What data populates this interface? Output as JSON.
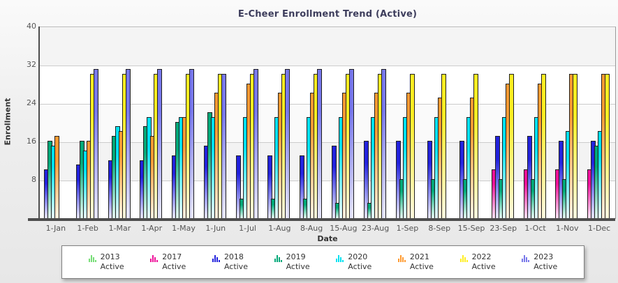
{
  "colors": {
    "page_bg_top": "#fafafa",
    "page_bg_bottom": "#e7e7e7",
    "title": "#3d3d5c",
    "tick_label": "#555555",
    "axis_label": "#333333",
    "gridline": "#cccccc",
    "axis_line": "#4d4d4d",
    "bar_outline": "#1f1f1f",
    "legend_border": "#808080",
    "plot_bands_top_to_bottom": [
      "#f4f4f4",
      "#ffffff",
      "#fafafa",
      "#f3f3f3",
      "#ffffff"
    ]
  },
  "chart_data": {
    "type": "bar",
    "title": "E-Cheer Enrollment Trend (Active)",
    "xlabel": "Date",
    "ylabel": "Enrollment",
    "ylim": [
      0,
      40
    ],
    "yticks": [
      40,
      32,
      24,
      16,
      8
    ],
    "grid": "horizontal gridlines every 8 units, alternating shaded bands",
    "legend_position": "bottom",
    "categories": [
      "1-Jan",
      "1-Feb",
      "1-Mar",
      "1-Apr",
      "1-May",
      "1-Jun",
      "1-Jul",
      "1-Aug",
      "8-Aug",
      "15-Aug",
      "23-Aug",
      "1-Sep",
      "8-Sep",
      "15-Sep",
      "23-Sep",
      "1-Oct",
      "1-Nov",
      "1-Dec"
    ],
    "series": [
      {
        "name": "2013 Active",
        "year": "2013",
        "status": "Active",
        "color": "#76dd76",
        "fade": "#e4f9e4",
        "values": [
          null,
          null,
          null,
          null,
          null,
          null,
          null,
          null,
          null,
          null,
          null,
          null,
          null,
          null,
          null,
          null,
          null,
          null
        ]
      },
      {
        "name": "2017 Active",
        "year": "2017",
        "status": "Active",
        "color": "#ee1199",
        "fade": "#ffd9f0",
        "values": [
          null,
          null,
          null,
          null,
          null,
          null,
          null,
          null,
          null,
          null,
          null,
          null,
          null,
          null,
          10,
          10,
          10,
          10
        ]
      },
      {
        "name": "2018 Active",
        "year": "2018",
        "status": "Active",
        "color": "#2222dd",
        "fade": "#dedef8",
        "values": [
          10,
          11,
          12,
          12,
          13,
          15,
          13,
          13,
          13,
          15,
          16,
          16,
          16,
          16,
          17,
          17,
          16,
          16
        ]
      },
      {
        "name": "2019 Active",
        "year": "2019",
        "status": "Active",
        "color": "#00a878",
        "fade": "#daf3ea",
        "values": [
          16,
          16,
          17,
          19,
          20,
          22,
          4,
          4,
          4,
          3,
          3,
          8,
          8,
          8,
          8,
          8,
          8,
          15
        ]
      },
      {
        "name": "2020 Active",
        "year": "2020",
        "status": "Active",
        "color": "#00e1f0",
        "fade": "#e0fbfd",
        "values": [
          15,
          14,
          19,
          21,
          21,
          21,
          21,
          21,
          21,
          21,
          21,
          21,
          21,
          21,
          21,
          21,
          18,
          18
        ]
      },
      {
        "name": "2021 Active",
        "year": "2021",
        "status": "Active",
        "color": "#ff9b32",
        "fade": "#ffeeda",
        "values": [
          17,
          16,
          18,
          17,
          21,
          26,
          28,
          26,
          26,
          26,
          26,
          26,
          25,
          25,
          28,
          28,
          30,
          30
        ]
      },
      {
        "name": "2022 Active",
        "year": "2022",
        "status": "Active",
        "color": "#ffee22",
        "fade": "#fffbd9",
        "values": [
          null,
          30,
          30,
          30,
          30,
          30,
          30,
          30,
          30,
          30,
          30,
          30,
          30,
          30,
          30,
          30,
          30,
          30
        ]
      },
      {
        "name": "2023 Active",
        "year": "2023",
        "status": "Active",
        "color": "#7878ea",
        "fade": "#e3e3fa",
        "values": [
          null,
          31,
          31,
          31,
          31,
          30,
          31,
          31,
          31,
          31,
          31,
          null,
          null,
          null,
          null,
          null,
          null,
          null
        ]
      }
    ]
  }
}
